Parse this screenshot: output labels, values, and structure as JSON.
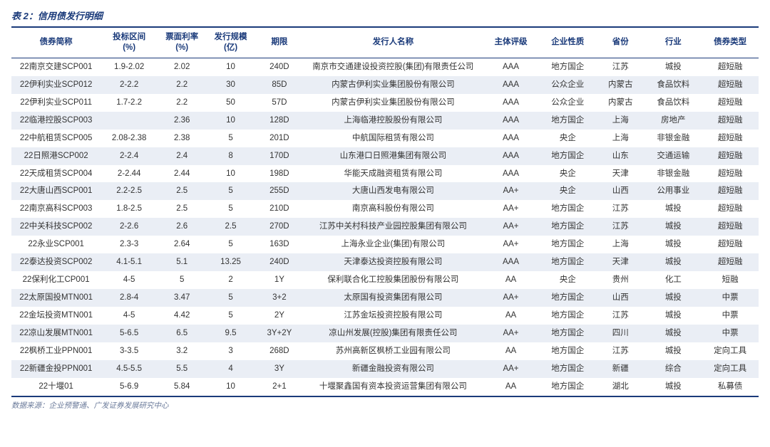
{
  "title": "表 2：信用债发行明细",
  "footer": "数据来源：企业预警通、广发证券发展研究中心",
  "colors": {
    "header_text": "#1a3a7a",
    "stripe_bg": "#eaeef5",
    "border": "#1a3a7a",
    "body_text": "#333333",
    "footer_text": "#6a7a9a",
    "background": "#ffffff"
  },
  "table": {
    "type": "table",
    "col_widths_pct": [
      11,
      7,
      6,
      6,
      6,
      22,
      7,
      7,
      6,
      7,
      7
    ],
    "columns": [
      "债券简称",
      "投标区间\n(%)",
      "票面利率\n(%)",
      "发行规模\n(亿)",
      "期限",
      "发行人名称",
      "主体评级",
      "企业性质",
      "省份",
      "行业",
      "债券类型"
    ],
    "rows": [
      [
        "22南京交建SCP001",
        "1.9-2.02",
        "2.02",
        "10",
        "240D",
        "南京市交通建设投资控股(集团)有限责任公司",
        "AAA",
        "地方国企",
        "江苏",
        "城投",
        "超短融"
      ],
      [
        "22伊利实业SCP012",
        "2-2.2",
        "2.2",
        "30",
        "85D",
        "内蒙古伊利实业集团股份有限公司",
        "AAA",
        "公众企业",
        "内蒙古",
        "食品饮料",
        "超短融"
      ],
      [
        "22伊利实业SCP011",
        "1.7-2.2",
        "2.2",
        "50",
        "57D",
        "内蒙古伊利实业集团股份有限公司",
        "AAA",
        "公众企业",
        "内蒙古",
        "食品饮料",
        "超短融"
      ],
      [
        "22临港控股SCP003",
        "",
        "2.36",
        "10",
        "128D",
        "上海临港控股股份有限公司",
        "AAA",
        "地方国企",
        "上海",
        "房地产",
        "超短融"
      ],
      [
        "22中航租赁SCP005",
        "2.08-2.38",
        "2.38",
        "5",
        "201D",
        "中航国际租赁有限公司",
        "AAA",
        "央企",
        "上海",
        "非银金融",
        "超短融"
      ],
      [
        "22日照港SCP002",
        "2-2.4",
        "2.4",
        "8",
        "170D",
        "山东港口日照港集团有限公司",
        "AAA",
        "地方国企",
        "山东",
        "交通运输",
        "超短融"
      ],
      [
        "22天成租赁SCP004",
        "2-2.44",
        "2.44",
        "10",
        "198D",
        "华能天成融资租赁有限公司",
        "AAA",
        "央企",
        "天津",
        "非银金融",
        "超短融"
      ],
      [
        "22大唐山西SCP001",
        "2.2-2.5",
        "2.5",
        "5",
        "255D",
        "大唐山西发电有限公司",
        "AA+",
        "央企",
        "山西",
        "公用事业",
        "超短融"
      ],
      [
        "22南京高科SCP003",
        "1.8-2.5",
        "2.5",
        "5",
        "210D",
        "南京高科股份有限公司",
        "AA+",
        "地方国企",
        "江苏",
        "城投",
        "超短融"
      ],
      [
        "22中关科技SCP002",
        "2-2.6",
        "2.6",
        "2.5",
        "270D",
        "江苏中关村科技产业园控股集团有限公司",
        "AA+",
        "地方国企",
        "江苏",
        "城投",
        "超短融"
      ],
      [
        "22永业SCP001",
        "2.3-3",
        "2.64",
        "5",
        "163D",
        "上海永业企业(集团)有限公司",
        "AA+",
        "地方国企",
        "上海",
        "城投",
        "超短融"
      ],
      [
        "22泰达投资SCP002",
        "4.1-5.1",
        "5.1",
        "13.25",
        "240D",
        "天津泰达投资控股有限公司",
        "AAA",
        "地方国企",
        "天津",
        "城投",
        "超短融"
      ],
      [
        "22保利化工CP001",
        "4-5",
        "5",
        "2",
        "1Y",
        "保利联合化工控股集团股份有限公司",
        "AA",
        "央企",
        "贵州",
        "化工",
        "短融"
      ],
      [
        "22太原国投MTN001",
        "2.8-4",
        "3.47",
        "5",
        "3+2",
        "太原国有投资集团有限公司",
        "AA+",
        "地方国企",
        "山西",
        "城投",
        "中票"
      ],
      [
        "22金坛投资MTN001",
        "4-5",
        "4.42",
        "5",
        "2Y",
        "江苏金坛投资控股有限公司",
        "AA",
        "地方国企",
        "江苏",
        "城投",
        "中票"
      ],
      [
        "22凉山发展MTN001",
        "5-6.5",
        "6.5",
        "9.5",
        "3Y+2Y",
        "凉山州发展(控股)集团有限责任公司",
        "AA+",
        "地方国企",
        "四川",
        "城投",
        "中票"
      ],
      [
        "22枫桥工业PPN001",
        "3-3.5",
        "3.2",
        "3",
        "268D",
        "苏州高新区枫桥工业园有限公司",
        "AA",
        "地方国企",
        "江苏",
        "城投",
        "定向工具"
      ],
      [
        "22新疆金投PPN001",
        "4.5-5.5",
        "5.5",
        "4",
        "3Y",
        "新疆金融投资有限公司",
        "AA+",
        "地方国企",
        "新疆",
        "综合",
        "定向工具"
      ],
      [
        "22十堰01",
        "5-6.9",
        "5.84",
        "10",
        "2+1",
        "十堰聚鑫国有资本投资运营集团有限公司",
        "AA",
        "地方国企",
        "湖北",
        "城投",
        "私募债"
      ]
    ]
  }
}
